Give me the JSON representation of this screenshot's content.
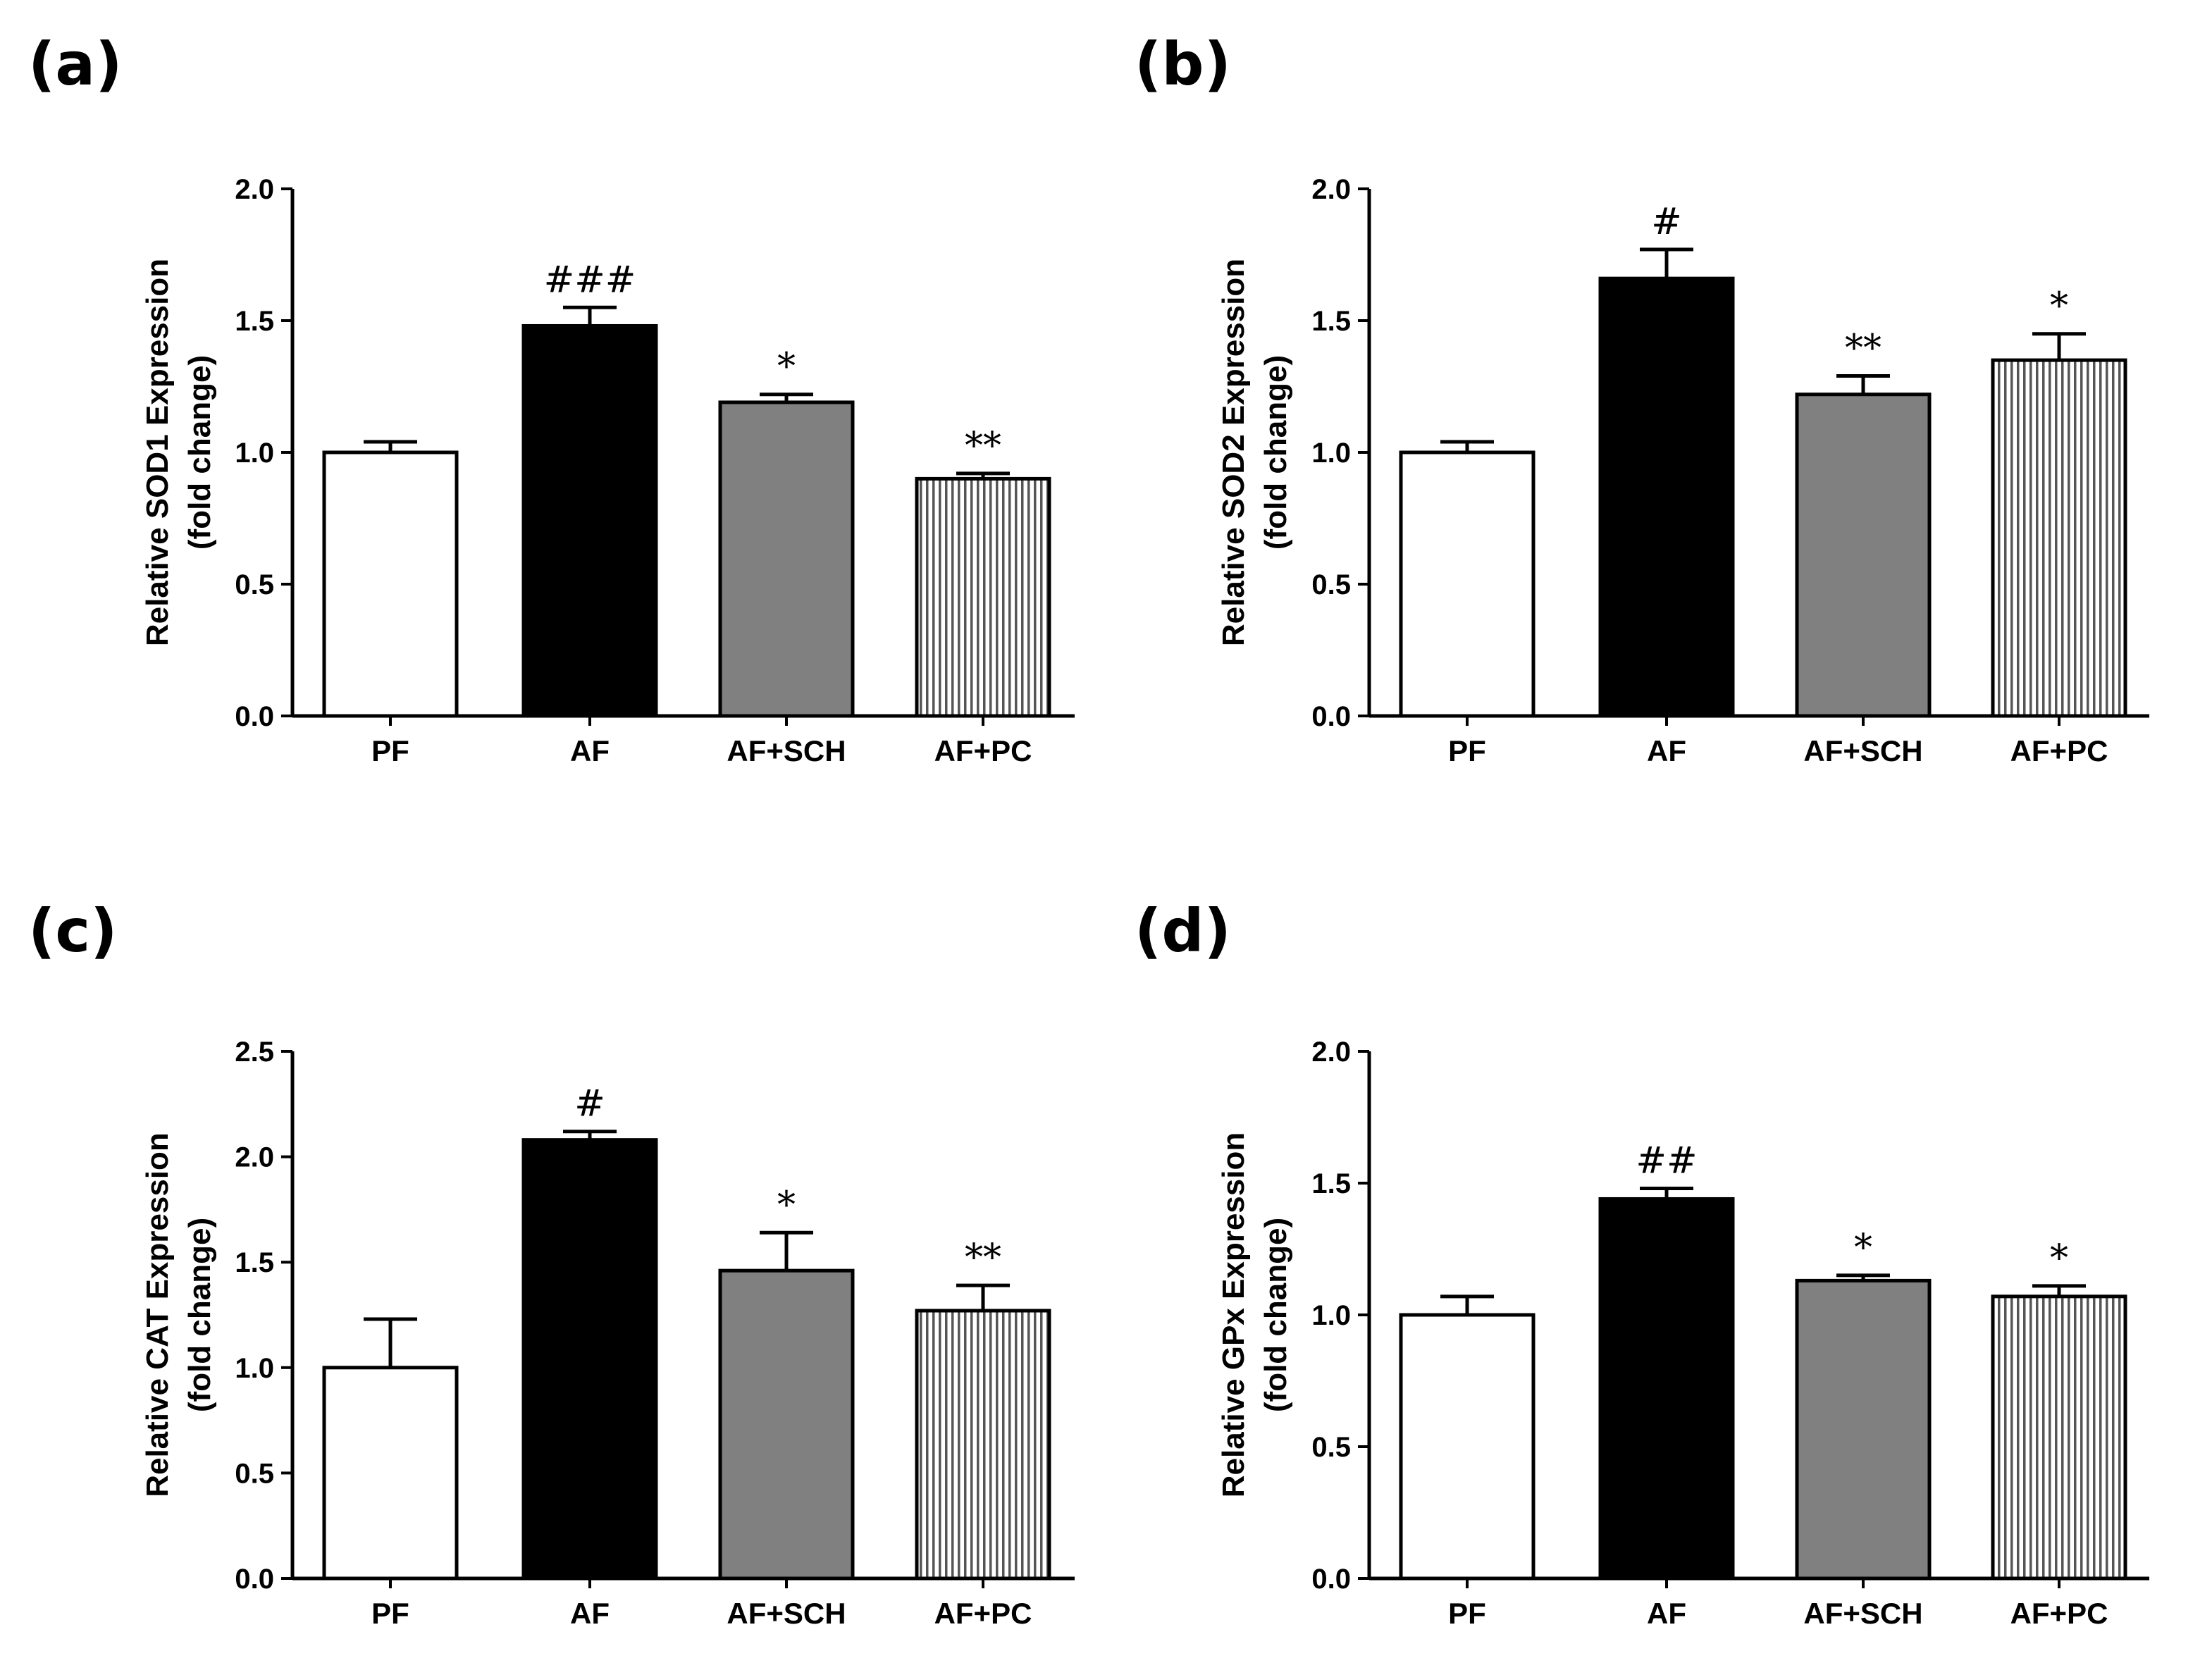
{
  "chart_data": [
    {
      "type": "bar",
      "panel_label": "(a)",
      "categories": [
        "PF",
        "AF",
        "AF+SCH",
        "AF+PC"
      ],
      "values": [
        1.0,
        1.48,
        1.19,
        0.9
      ],
      "errors": [
        0.04,
        0.07,
        0.03,
        0.02
      ],
      "significance": [
        "",
        "###",
        "*",
        "**"
      ],
      "ylabel_line1": "Relative SOD1 Expression",
      "ylabel_line2": "(fold change)",
      "ylim": [
        0,
        2.0
      ],
      "yticks": [
        "0.0",
        "0.5",
        "1.0",
        "1.5",
        "2.0"
      ],
      "bar_fills": [
        "white",
        "black",
        "gray",
        "hatch"
      ]
    },
    {
      "type": "bar",
      "panel_label": "(b)",
      "categories": [
        "PF",
        "AF",
        "AF+SCH",
        "AF+PC"
      ],
      "values": [
        1.0,
        1.66,
        1.22,
        1.35
      ],
      "errors": [
        0.04,
        0.11,
        0.07,
        0.1
      ],
      "significance": [
        "",
        "#",
        "**",
        "*"
      ],
      "ylabel_line1": "Relative SOD2 Expression",
      "ylabel_line2": "(fold change)",
      "ylim": [
        0,
        2.0
      ],
      "yticks": [
        "0.0",
        "0.5",
        "1.0",
        "1.5",
        "2.0"
      ],
      "bar_fills": [
        "white",
        "black",
        "gray",
        "hatch"
      ]
    },
    {
      "type": "bar",
      "panel_label": "(c)",
      "categories": [
        "PF",
        "AF",
        "AF+SCH",
        "AF+PC"
      ],
      "values": [
        1.0,
        2.08,
        1.46,
        1.27
      ],
      "errors": [
        0.23,
        0.04,
        0.18,
        0.12
      ],
      "significance": [
        "",
        "#",
        "*",
        "**"
      ],
      "ylabel_line1": "Relative CAT Expression",
      "ylabel_line2": "(fold change)",
      "ylim": [
        0,
        2.5
      ],
      "yticks": [
        "0.0",
        "0.5",
        "1.0",
        "1.5",
        "2.0",
        "2.5"
      ],
      "bar_fills": [
        "white",
        "black",
        "gray",
        "hatch"
      ]
    },
    {
      "type": "bar",
      "panel_label": "(d)",
      "categories": [
        "PF",
        "AF",
        "AF+SCH",
        "AF+PC"
      ],
      "values": [
        1.0,
        1.44,
        1.13,
        1.07
      ],
      "errors": [
        0.07,
        0.04,
        0.02,
        0.04
      ],
      "significance": [
        "",
        "##",
        "*",
        "*"
      ],
      "ylabel_line1": "Relative GPx Expression",
      "ylabel_line2": "(fold change)",
      "ylim": [
        0,
        2.0
      ],
      "yticks": [
        "0.0",
        "0.5",
        "1.0",
        "1.5",
        "2.0"
      ],
      "bar_fills": [
        "white",
        "black",
        "gray",
        "hatch"
      ]
    }
  ],
  "colors": {
    "white_bar": "#ffffff",
    "black_bar": "#000000",
    "gray_bar": "#808080",
    "hatch_line": "#555555"
  }
}
